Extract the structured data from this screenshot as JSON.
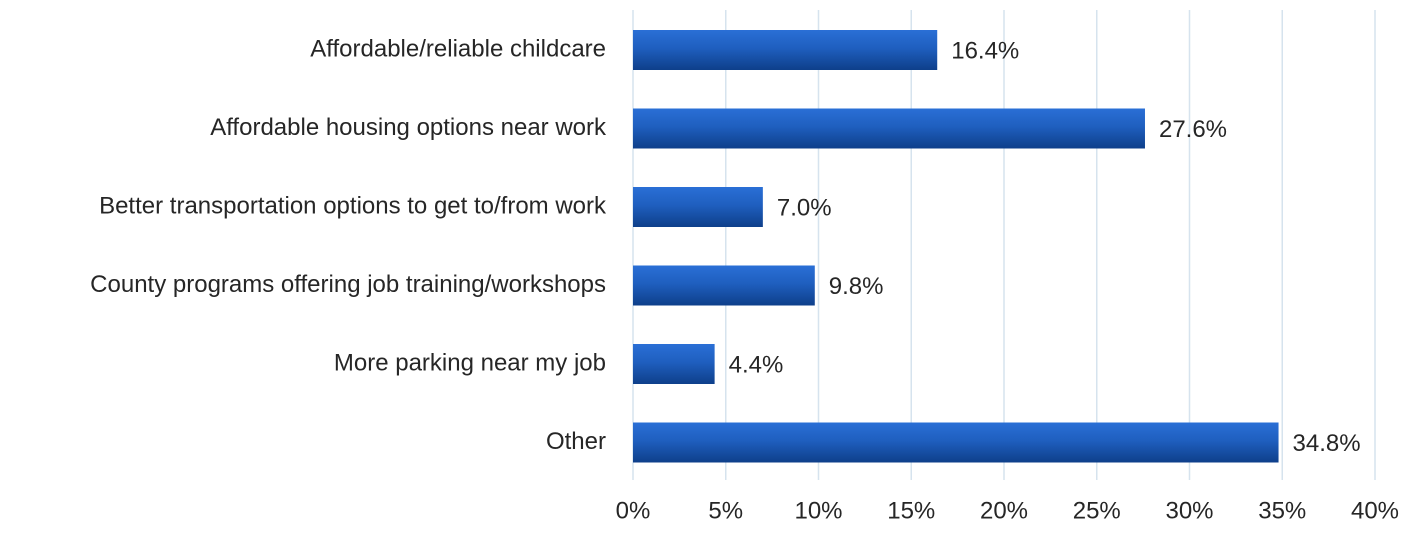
{
  "chart_data": {
    "type": "bar",
    "orientation": "horizontal",
    "categories": [
      "Affordable/reliable childcare",
      "Affordable housing options near work",
      "Better transportation options to get to/from work",
      "County programs offering job training/workshops",
      "More parking near my job",
      "Other"
    ],
    "values": [
      16.4,
      27.6,
      7.0,
      9.8,
      4.4,
      34.8
    ],
    "data_labels": [
      "16.4%",
      "27.6%",
      "7.0%",
      "9.8%",
      "4.4%",
      "34.8%"
    ],
    "x_ticks": [
      0,
      5,
      10,
      15,
      20,
      25,
      30,
      35,
      40
    ],
    "x_tick_labels": [
      "0%",
      "5%",
      "10%",
      "15%",
      "20%",
      "25%",
      "30%",
      "35%",
      "40%"
    ],
    "xlim": [
      0,
      40
    ],
    "title": "",
    "xlabel": "",
    "ylabel": "",
    "grid": "vertical",
    "legend": "none",
    "bar_color": "#1F5FBF",
    "bar_color_light": "#2A6FD6",
    "bar_color_dark": "#0E3F8A",
    "grid_color": "#D6E3EE"
  }
}
